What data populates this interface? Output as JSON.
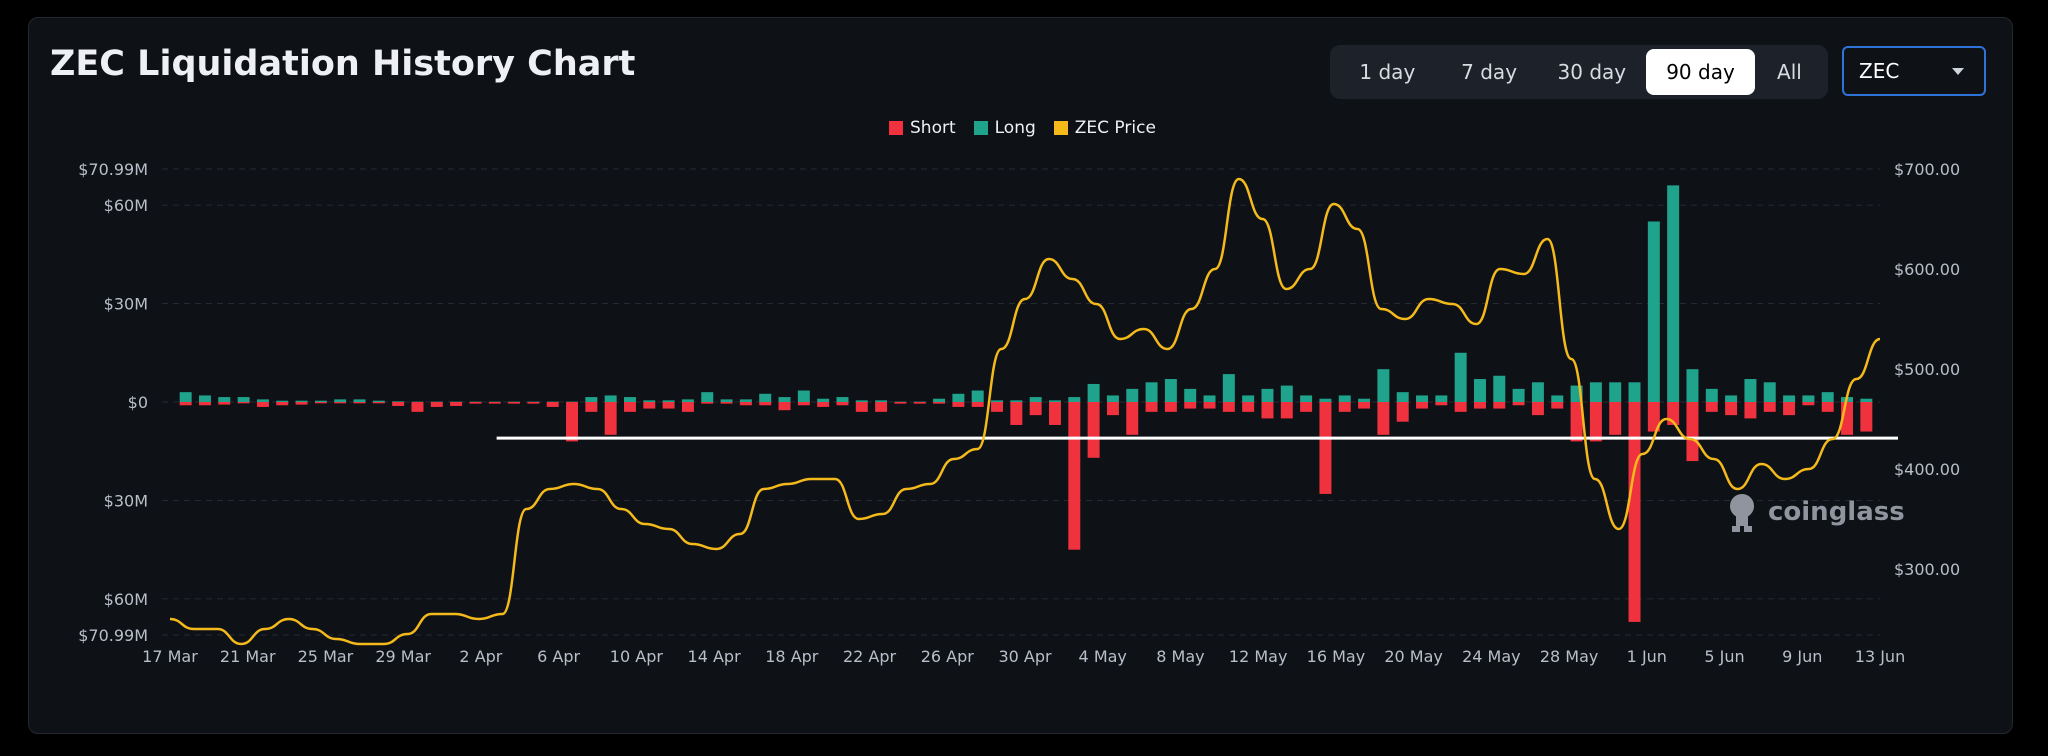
{
  "header": {
    "title": "ZEC Liquidation History Chart"
  },
  "range_tabs": [
    {
      "label": "1 day",
      "active": false
    },
    {
      "label": "7 day",
      "active": false
    },
    {
      "label": "30 day",
      "active": false
    },
    {
      "label": "90 day",
      "active": true
    },
    {
      "label": "All",
      "active": false
    }
  ],
  "coin_select": {
    "value": "ZEC"
  },
  "watermark": {
    "text": "coinglass"
  },
  "colors": {
    "short": "#f0323f",
    "long": "#1fa38c",
    "price": "#f4ba1b",
    "background": "#0e1116"
  },
  "chart_data": {
    "type": "bar",
    "legend": [
      "Short",
      "Long",
      "ZEC Price"
    ],
    "legend_position": "top-center",
    "grid": true,
    "x_ticks": [
      "17 Mar",
      "21 Mar",
      "25 Mar",
      "29 Mar",
      "2 Apr",
      "6 Apr",
      "10 Apr",
      "14 Apr",
      "18 Apr",
      "22 Apr",
      "26 Apr",
      "30 Apr",
      "4 May",
      "8 May",
      "12 May",
      "16 May",
      "20 May",
      "24 May",
      "28 May",
      "1 Jun",
      "5 Jun",
      "9 Jun",
      "13 Jun"
    ],
    "y_left_ticks": [
      {
        "label": "$70.99M",
        "value": 70.99
      },
      {
        "label": "$60M",
        "value": 60
      },
      {
        "label": "$30M",
        "value": 30
      },
      {
        "label": "$0",
        "value": 0
      },
      {
        "label": "$30M",
        "value": -30
      },
      {
        "label": "$60M",
        "value": -60
      },
      {
        "label": "$70.99M",
        "value": -70.99
      }
    ],
    "y_left_range": [
      -70.99,
      70.99
    ],
    "y_right_ticks": [
      "$700.00",
      "$600.00",
      "$500.00",
      "$400.00",
      "$300.00"
    ],
    "y_right_range": [
      220,
      700
    ],
    "horizontal_reference_line": {
      "value": -11,
      "from": "3 Apr",
      "to": "end"
    },
    "series": [
      {
        "name": "Long",
        "unit": "M USD",
        "values": [
          3,
          2,
          1.5,
          1.5,
          0.8,
          0.4,
          0.4,
          0.4,
          0.8,
          0.8,
          0.4,
          0.2,
          0.1,
          0.1,
          0.1,
          0.1,
          0.1,
          0.1,
          0.1,
          0.1,
          0.1,
          1.5,
          2,
          1.5,
          0.5,
          0.5,
          0.8,
          3,
          0.8,
          0.8,
          2.5,
          1.5,
          3.5,
          1,
          1.5,
          0.5,
          0.5,
          0.1,
          0.1,
          1,
          2.5,
          3.5,
          0.5,
          0.5,
          1.5,
          0.5,
          1.5,
          5.5,
          2,
          4,
          6,
          7,
          4,
          2,
          8.5,
          2,
          4,
          5,
          2,
          1,
          2,
          1,
          10,
          3,
          2,
          2,
          15,
          7,
          8,
          4,
          6,
          2,
          5,
          6,
          6,
          6,
          55,
          66,
          10,
          4,
          2,
          7,
          6,
          2,
          2,
          3,
          1.5,
          1
        ]
      },
      {
        "name": "Short",
        "unit": "M USD",
        "values": [
          1,
          1,
          0.8,
          0.4,
          1.5,
          1,
          0.8,
          0.4,
          0.4,
          0.4,
          0.4,
          1.2,
          3,
          1.5,
          1.2,
          0.5,
          0.5,
          0.5,
          0.5,
          1.5,
          12,
          3,
          10,
          3,
          2,
          2,
          3,
          0.5,
          0.5,
          1,
          1,
          2.5,
          1,
          1.5,
          1,
          3,
          3,
          0.5,
          0.5,
          0.5,
          1.5,
          1.5,
          3,
          7,
          4,
          7,
          45,
          17,
          4,
          10,
          3,
          3,
          2,
          2,
          3,
          3,
          5,
          5,
          3,
          28,
          3,
          2,
          10,
          6,
          2,
          1,
          3,
          2,
          2,
          1,
          4,
          2,
          12,
          12,
          10,
          67,
          9,
          7,
          18,
          3,
          4,
          5,
          3,
          4,
          1,
          3,
          10,
          9
        ]
      },
      {
        "name": "ZEC Price",
        "unit": "USD",
        "values": [
          250,
          240,
          240,
          225,
          240,
          250,
          240,
          230,
          225,
          225,
          235,
          255,
          255,
          250,
          255,
          360,
          380,
          385,
          380,
          360,
          345,
          340,
          325,
          320,
          335,
          380,
          385,
          390,
          390,
          350,
          355,
          380,
          385,
          410,
          420,
          520,
          570,
          610,
          590,
          565,
          530,
          540,
          520,
          560,
          600,
          690,
          650,
          580,
          600,
          665,
          640,
          560,
          550,
          570,
          565,
          545,
          600,
          595,
          630,
          510,
          390,
          340,
          415,
          450,
          430,
          410,
          380,
          405,
          390,
          400,
          430,
          490,
          530
        ]
      }
    ]
  }
}
